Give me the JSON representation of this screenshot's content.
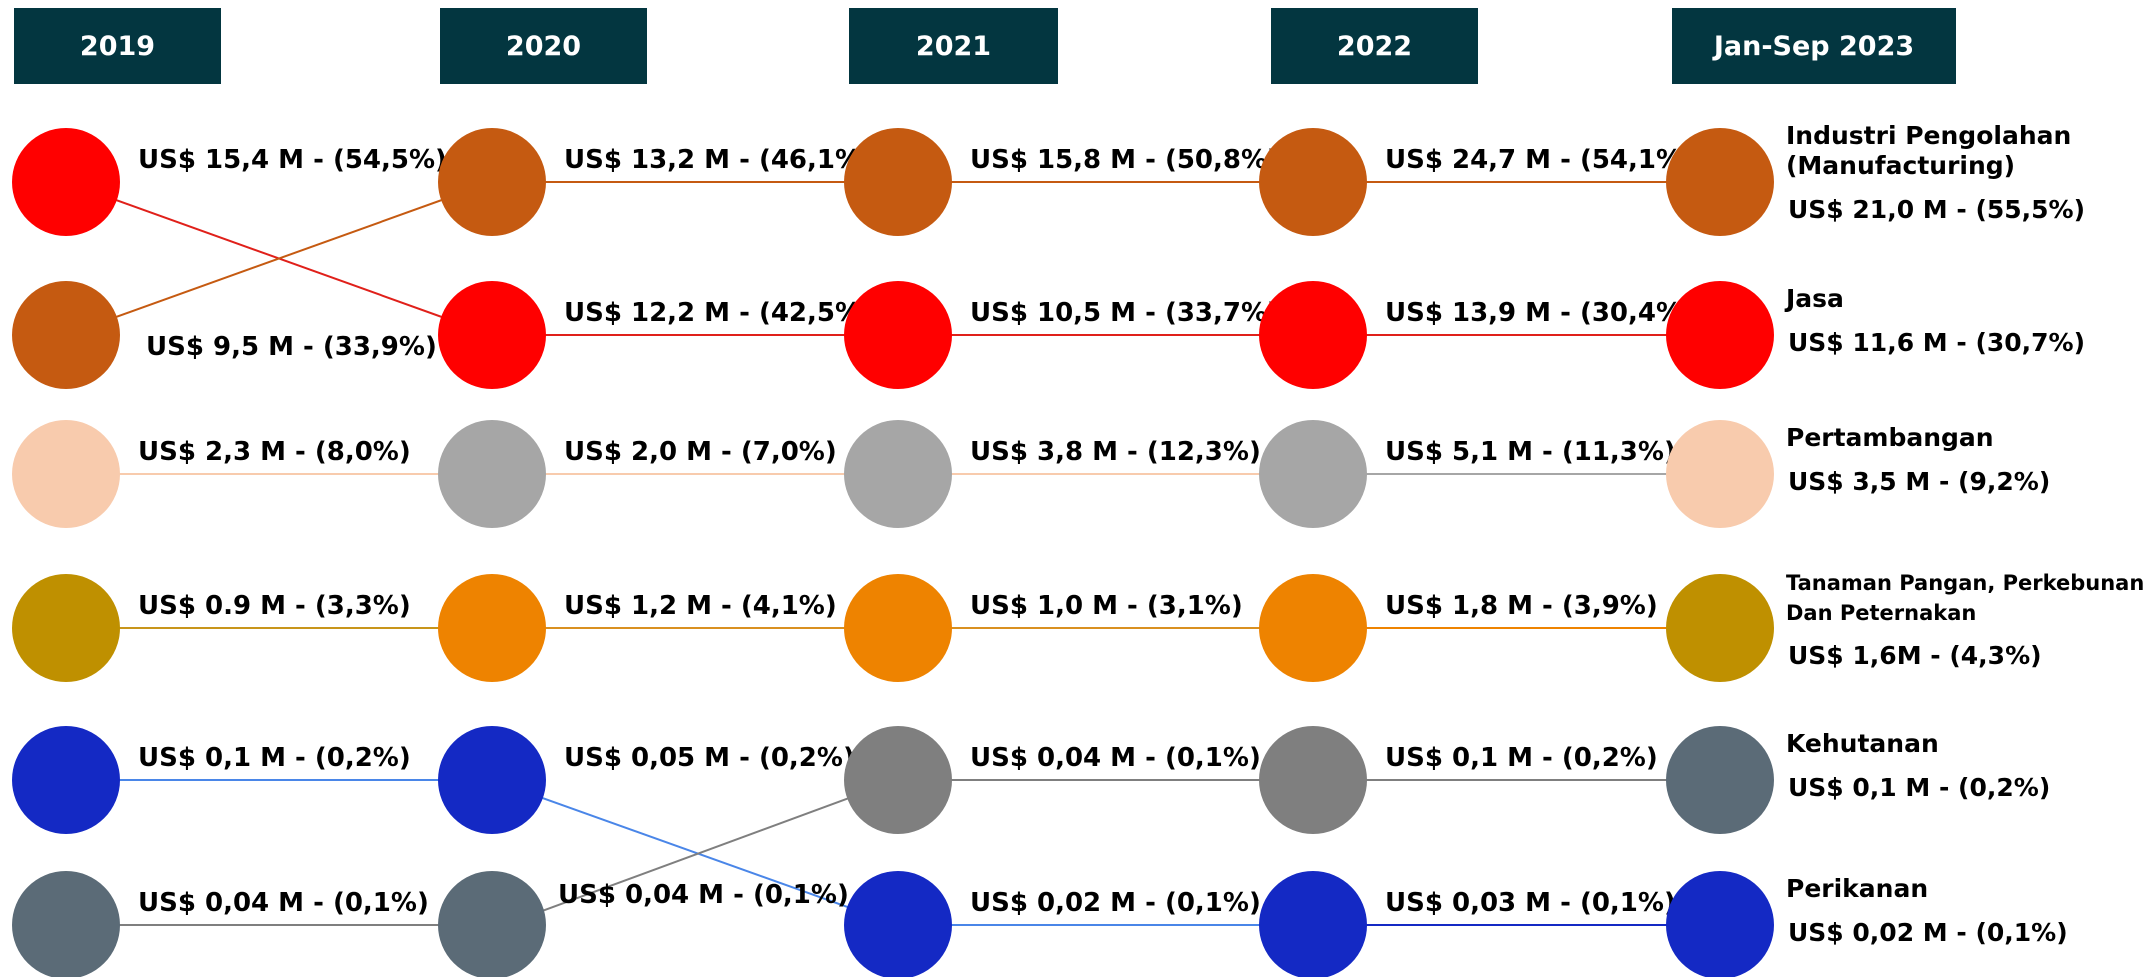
{
  "columns": [
    {
      "header": "2019",
      "nodes": [
        {
          "color": "#ff0000",
          "label": "US$ 15,4 M - (54,5%)"
        },
        {
          "color": "#c55a11",
          "label": "US$ 9,5 M - (33,9%)"
        },
        {
          "color": "#f8cbad",
          "label": "US$ 2,3 M - (8,0%)"
        },
        {
          "color": "#bf9000",
          "label": "US$ 0.9 M - (3,3%)"
        },
        {
          "color": "#1429c4",
          "label": "US$ 0,1 M - (0,2%)"
        },
        {
          "color": "#5b6b77",
          "label": "US$ 0,04 M - (0,1%)"
        }
      ]
    },
    {
      "header": "2020",
      "nodes": [
        {
          "color": "#c55a11",
          "label": "US$ 13,2 M - (46,1%)"
        },
        {
          "color": "#ff0000",
          "label": "US$ 12,2 M - (42,5%)"
        },
        {
          "color": "#a6a6a6",
          "label": "US$ 2,0 M - (7,0%)"
        },
        {
          "color": "#ee8300",
          "label": "US$ 1,2 M - (4,1%)"
        },
        {
          "color": "#1429c4",
          "label": "US$ 0,05 M - (0,2%)"
        },
        {
          "color": "#5b6b77",
          "label": "US$ 0,04 M - (0,1%)"
        }
      ]
    },
    {
      "header": "2021",
      "nodes": [
        {
          "color": "#c55a11",
          "label": "US$ 15,8 M - (50,8%)"
        },
        {
          "color": "#ff0000",
          "label": "US$ 10,5 M - (33,7%)"
        },
        {
          "color": "#a6a6a6",
          "label": "US$ 3,8 M - (12,3%)"
        },
        {
          "color": "#ee8300",
          "label": "US$ 1,0 M - (3,1%)"
        },
        {
          "color": "#7f7f7f",
          "label": "US$ 0,04 M - (0,1%)"
        },
        {
          "color": "#1429c4",
          "label": "US$ 0,02 M - (0,1%)"
        }
      ]
    },
    {
      "header": "2022",
      "nodes": [
        {
          "color": "#c55a11",
          "label": "US$ 24,7 M - (54,1%)"
        },
        {
          "color": "#ff0000",
          "label": "US$ 13,9 M - (30,4%)"
        },
        {
          "color": "#a6a6a6",
          "label": "US$ 5,1 M - (11,3%)"
        },
        {
          "color": "#ee8300",
          "label": "US$ 1,8 M - (3,9%)"
        },
        {
          "color": "#7f7f7f",
          "label": "US$ 0,1 M - (0,2%)"
        },
        {
          "color": "#1429c4",
          "label": "US$ 0,03 M - (0,1%)"
        }
      ]
    },
    {
      "header": "Jan-Sep 2023",
      "nodes": [
        {
          "color": "#c55a11",
          "name_lines": [
            "Industri Pengolahan",
            "(Manufacturing)"
          ],
          "label": "US$ 21,0 M - (55,5%)"
        },
        {
          "color": "#ff0000",
          "name_lines": [
            "Jasa"
          ],
          "label": "US$ 11,6 M - (30,7%)"
        },
        {
          "color": "#f8cbad",
          "name_lines": [
            "Pertambangan"
          ],
          "label": "US$ 3,5 M - (9,2%)"
        },
        {
          "color": "#bf9000",
          "name_lines": [
            "Tanaman Pangan, Perkebunan",
            "Dan Peternakan"
          ],
          "label": "US$ 1,6M - (4,3%)"
        },
        {
          "color": "#5b6b77",
          "name_lines": [
            "Kehutanan"
          ],
          "label": "US$ 0,1 M - (0,2%)"
        },
        {
          "color": "#1429c4",
          "name_lines": [
            "Perikanan"
          ],
          "label": "US$ 0,02 M - (0,1%)"
        }
      ]
    }
  ]
}
